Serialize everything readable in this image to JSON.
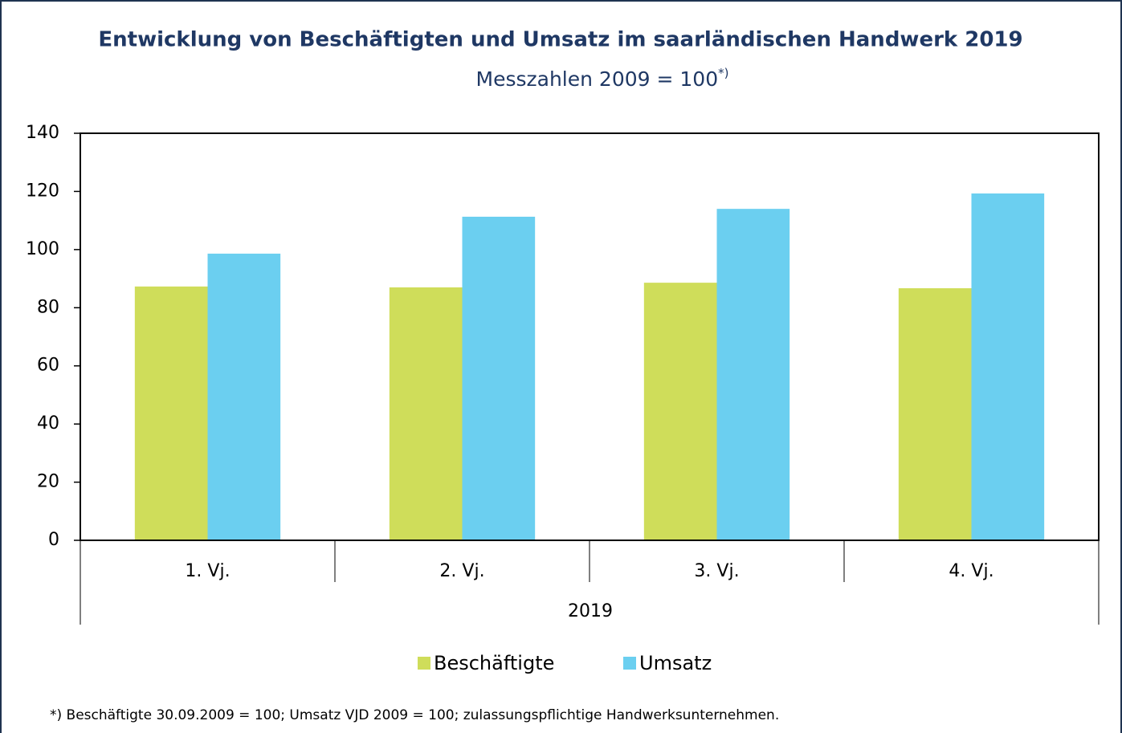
{
  "chart_data": {
    "type": "bar",
    "title": "Entwicklung von Beschäftigten und Umsatz im saarländischen Handwerk 2019",
    "subtitle": "Messzahlen 2009 = 100",
    "subtitle_note": "*)",
    "categories": [
      "1. Vj.",
      "2. Vj.",
      "3. Vj.",
      "4. Vj."
    ],
    "x_group_label": "2019",
    "series": [
      {
        "name": "Beschäftigte",
        "color": "#cfdd5a",
        "values": [
          87.3,
          87.0,
          88.6,
          86.7
        ]
      },
      {
        "name": "Umsatz",
        "color": "#6bcff0",
        "values": [
          98.6,
          111.3,
          114.0,
          119.3
        ]
      }
    ],
    "ylim": [
      0,
      140
    ],
    "yticks": [
      0,
      20,
      40,
      60,
      80,
      100,
      120,
      140
    ],
    "grid": false,
    "legend": "bottom",
    "footnote": "*) Beschäftigte 30.09.2009 = 100; Umsatz VJD 2009 = 100; zulassungspflichtige Handwerksunternehmen."
  }
}
